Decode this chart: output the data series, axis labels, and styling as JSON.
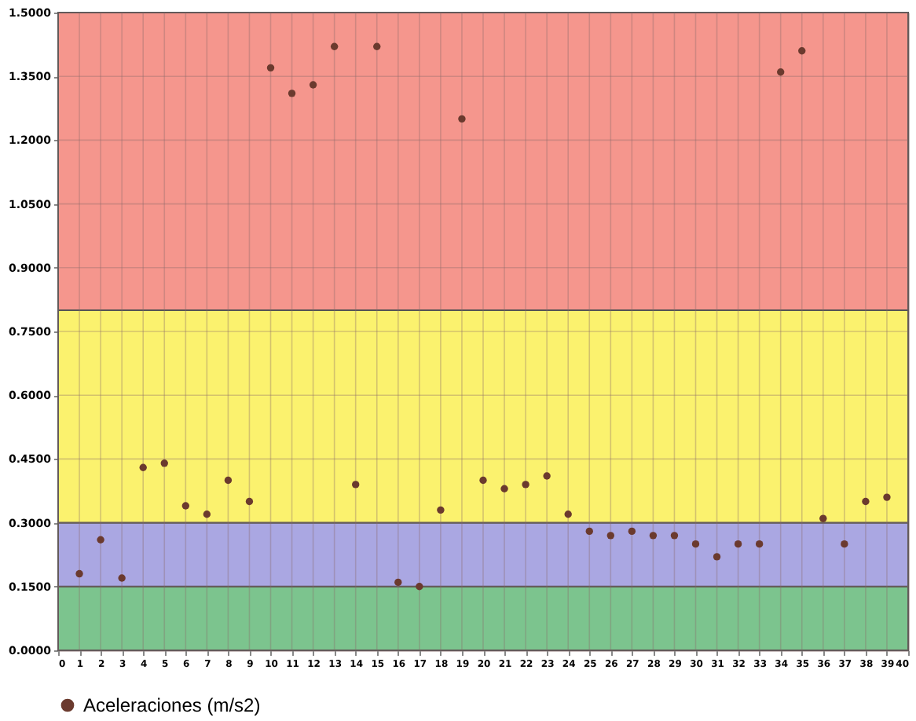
{
  "chart_data": {
    "type": "scatter",
    "x": [
      1,
      2,
      3,
      4,
      5,
      6,
      7,
      8,
      9,
      10,
      11,
      12,
      13,
      14,
      15,
      16,
      17,
      18,
      19,
      20,
      21,
      22,
      23,
      24,
      25,
      26,
      27,
      28,
      29,
      30,
      31,
      32,
      33,
      34,
      35,
      36,
      37,
      38,
      39
    ],
    "series": [
      {
        "name": "Aceleraciones (m/s2)",
        "color": "#6b3a2e",
        "values": [
          0.18,
          0.26,
          0.17,
          0.43,
          0.44,
          0.34,
          0.32,
          0.4,
          0.35,
          1.37,
          1.31,
          1.33,
          1.42,
          0.39,
          1.42,
          0.16,
          0.15,
          0.33,
          1.25,
          0.4,
          0.38,
          0.39,
          0.41,
          0.32,
          0.28,
          0.27,
          0.28,
          0.27,
          0.27,
          0.25,
          0.22,
          0.25,
          0.25,
          1.36,
          1.41,
          0.31,
          0.25,
          0.35,
          0.36
        ]
      }
    ],
    "xlim": [
      0,
      40
    ],
    "xticks": [
      0,
      1,
      2,
      3,
      4,
      5,
      6,
      7,
      8,
      9,
      10,
      11,
      12,
      13,
      14,
      15,
      16,
      17,
      18,
      19,
      20,
      21,
      22,
      23,
      24,
      25,
      26,
      27,
      28,
      29,
      30,
      31,
      32,
      33,
      34,
      35,
      36,
      37,
      38,
      39,
      40
    ],
    "ylim": [
      0,
      1.5
    ],
    "yticks": [
      {
        "value": 0,
        "label": "0.0000"
      },
      {
        "value": 0.15,
        "label": "0.1500"
      },
      {
        "value": 0.3,
        "label": "0.3000"
      },
      {
        "value": 0.45,
        "label": "0.4500"
      },
      {
        "value": 0.6,
        "label": "0.6000"
      },
      {
        "value": 0.75,
        "label": "0.7500"
      },
      {
        "value": 0.9,
        "label": "0.9000"
      },
      {
        "value": 1.05,
        "label": "1.0500"
      },
      {
        "value": 1.2,
        "label": "1.2000"
      },
      {
        "value": 1.35,
        "label": "1.3500"
      },
      {
        "value": 1.5,
        "label": "1.5000"
      }
    ],
    "bands": [
      {
        "axis": "y",
        "from": 0,
        "to": 0.15,
        "color": "#7cc48e"
      },
      {
        "axis": "y",
        "from": 0.15,
        "to": 0.3,
        "color": "#aaa7e2"
      },
      {
        "axis": "y",
        "from": 0.3,
        "to": 0.8,
        "color": "#fbf26e"
      },
      {
        "axis": "y",
        "from": 0.8,
        "to": 1.5,
        "color": "#f5968d"
      }
    ],
    "grid": true,
    "legend": "bottom",
    "marker": "circle"
  }
}
